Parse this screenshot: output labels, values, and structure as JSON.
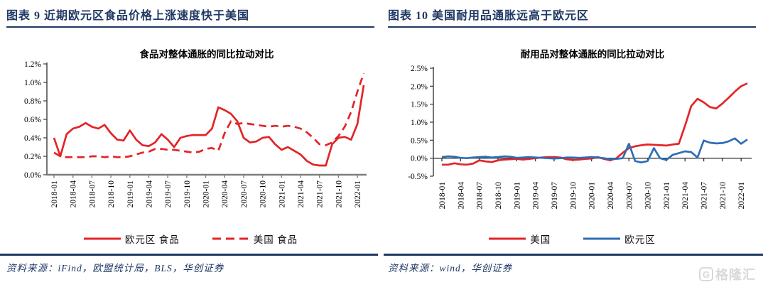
{
  "figures": {
    "fig9": {
      "header": "图表 9   近期欧元区食品价格上涨速度快于美国",
      "source": "资料来源：iFind，欧盟统计局，BLS，华创证券"
    },
    "fig10": {
      "header": "图表 10   美国耐用品通胀远高于欧元区",
      "source": "资料来源：wind，华创证券"
    }
  },
  "watermark": {
    "logo_letter": "G",
    "logo_text": "格隆汇"
  },
  "colors": {
    "accent_navy": "#1f3864",
    "line_red": "#e32427",
    "line_blue": "#2d6eb4",
    "watermark_gray": "#d9d9d9"
  },
  "chart_data": [
    {
      "type": "line",
      "title": "食品对整体通胀的同比拉动对比",
      "frequency": "monthly",
      "x_start": "2018-01",
      "x_tick_labels": [
        "2018-01",
        "2018-04",
        "2018-07",
        "2018-10",
        "2019-01",
        "2019-04",
        "2019-07",
        "2019-10",
        "2020-01",
        "2020-04",
        "2020-07",
        "2020-10",
        "2021-01",
        "2021-04",
        "2021-07",
        "2021-10",
        "2022-01"
      ],
      "tick_every": 3,
      "ylim": [
        0,
        1.2
      ],
      "yticks": [
        {
          "v": 0.0,
          "label": "0.0%"
        },
        {
          "v": 0.2,
          "label": "0.2%"
        },
        {
          "v": 0.4,
          "label": "0.4%"
        },
        {
          "v": 0.6,
          "label": "0.6%"
        },
        {
          "v": 0.8,
          "label": "0.8%"
        },
        {
          "v": 1.0,
          "label": "1.0%"
        },
        {
          "v": 1.2,
          "label": "1.2%"
        }
      ],
      "grid": false,
      "legend_position": "bottom",
      "series": [
        {
          "name": "欧元区 食品",
          "color": "#e32427",
          "dash": false,
          "values": [
            0.4,
            0.2,
            0.44,
            0.5,
            0.52,
            0.56,
            0.52,
            0.5,
            0.54,
            0.45,
            0.38,
            0.37,
            0.48,
            0.38,
            0.32,
            0.31,
            0.35,
            0.44,
            0.38,
            0.3,
            0.4,
            0.42,
            0.43,
            0.43,
            0.43,
            0.5,
            0.73,
            0.7,
            0.66,
            0.58,
            0.4,
            0.35,
            0.36,
            0.4,
            0.41,
            0.33,
            0.27,
            0.3,
            0.26,
            0.22,
            0.15,
            0.11,
            0.1,
            0.1,
            0.33,
            0.4,
            0.41,
            0.38,
            0.55,
            0.97
          ]
        },
        {
          "name": "美国 食品",
          "color": "#e32427",
          "dash": true,
          "values": [
            0.24,
            0.2,
            0.19,
            0.19,
            0.19,
            0.19,
            0.2,
            0.2,
            0.19,
            0.2,
            0.19,
            0.19,
            0.2,
            0.22,
            0.24,
            0.25,
            0.28,
            0.28,
            0.27,
            0.27,
            0.26,
            0.25,
            0.24,
            0.25,
            0.28,
            0.29,
            0.26,
            0.45,
            0.58,
            0.55,
            0.56,
            0.55,
            0.54,
            0.53,
            0.52,
            0.53,
            0.52,
            0.53,
            0.52,
            0.5,
            0.46,
            0.4,
            0.33,
            0.32,
            0.35,
            0.42,
            0.52,
            0.68,
            0.9,
            1.1
          ]
        }
      ]
    },
    {
      "type": "line",
      "title": "耐用品对整体通胀的同比拉动对比",
      "frequency": "monthly",
      "x_start": "2018-01",
      "x_tick_labels": [
        "2018-01",
        "2018-04",
        "2018-07",
        "2018-10",
        "2019-01",
        "2019-04",
        "2019-07",
        "2019-10",
        "2020-01",
        "2020-04",
        "2020-07",
        "2020-10",
        "2021-01",
        "2021-04",
        "2021-07",
        "2021-10",
        "2022-01"
      ],
      "tick_every": 3,
      "ylim": [
        -0.5,
        2.5
      ],
      "yticks": [
        {
          "v": -0.5,
          "label": "-0.5%"
        },
        {
          "v": 0.0,
          "label": "0.0%"
        },
        {
          "v": 0.5,
          "label": "0.5%"
        },
        {
          "v": 1.0,
          "label": "1.0%"
        },
        {
          "v": 1.5,
          "label": "1.5%"
        },
        {
          "v": 2.0,
          "label": "2.0%"
        },
        {
          "v": 2.5,
          "label": "2.5%"
        }
      ],
      "grid": false,
      "legend_position": "bottom",
      "series": [
        {
          "name": "美国",
          "color": "#e32427",
          "dash": false,
          "values": [
            -0.18,
            -0.18,
            -0.14,
            -0.17,
            -0.18,
            -0.15,
            -0.06,
            -0.09,
            -0.11,
            -0.06,
            -0.04,
            -0.03,
            -0.02,
            -0.04,
            -0.02,
            0.0,
            0.02,
            0.03,
            0.03,
            0.02,
            -0.03,
            -0.05,
            -0.04,
            -0.02,
            -0.01,
            0.03,
            -0.02,
            -0.06,
            0.0,
            0.15,
            0.28,
            0.33,
            0.36,
            0.38,
            0.37,
            0.36,
            0.35,
            0.38,
            0.4,
            0.9,
            1.45,
            1.65,
            1.55,
            1.42,
            1.38,
            1.52,
            1.68,
            1.85,
            2.0,
            2.08
          ]
        },
        {
          "name": "欧元区",
          "color": "#2d6eb4",
          "dash": false,
          "values": [
            0.03,
            0.05,
            0.04,
            0.01,
            0.0,
            0.02,
            0.03,
            0.04,
            0.02,
            0.03,
            0.05,
            0.04,
            0.01,
            0.02,
            0.03,
            0.02,
            0.01,
            0.0,
            -0.01,
            0.0,
            0.02,
            0.02,
            0.01,
            0.02,
            0.03,
            0.02,
            0.0,
            -0.03,
            -0.02,
            0.0,
            0.4,
            -0.08,
            -0.12,
            -0.08,
            0.28,
            0.0,
            -0.05,
            0.09,
            0.14,
            0.19,
            0.17,
            0.02,
            0.49,
            0.43,
            0.41,
            0.42,
            0.47,
            0.55,
            0.4,
            0.52
          ]
        }
      ]
    }
  ]
}
